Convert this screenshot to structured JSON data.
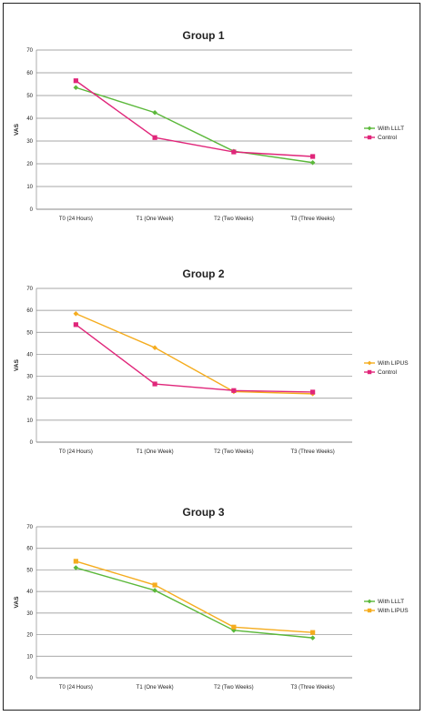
{
  "chart_data": [
    {
      "type": "line",
      "title": "Group 1",
      "ylabel": "VAS",
      "xlabel": "",
      "categories": [
        "T0 (24 Hours)",
        "T1 (One Week)",
        "T2 (Two Weeks)",
        "T3 (Three Weeks)"
      ],
      "ylim": [
        0,
        70
      ],
      "yticks": [
        0,
        10,
        20,
        30,
        40,
        50,
        60,
        70
      ],
      "grid": true,
      "legend": "right",
      "series": [
        {
          "name": "With LLLT",
          "values": [
            53.5,
            42.5,
            25.5,
            20.5
          ],
          "color": "#5bb83a",
          "marker": "diamond"
        },
        {
          "name": "Control",
          "values": [
            56.5,
            31.5,
            25.2,
            23.2
          ],
          "color": "#e0267a",
          "marker": "square"
        }
      ]
    },
    {
      "type": "line",
      "title": "Group 2",
      "ylabel": "VAS",
      "xlabel": "",
      "categories": [
        "T0 (24 Hours)",
        "T1 (One Week)",
        "T2 (Two Weeks)",
        "T3 (Three Weeks)"
      ],
      "ylim": [
        0,
        70
      ],
      "yticks": [
        0,
        10,
        20,
        30,
        40,
        50,
        60,
        70
      ],
      "grid": true,
      "legend": "right",
      "series": [
        {
          "name": "With LIPUS",
          "values": [
            58.5,
            43,
            23,
            22
          ],
          "color": "#f5ac1e",
          "marker": "diamond"
        },
        {
          "name": "Control",
          "values": [
            53.5,
            26.5,
            23.5,
            22.8
          ],
          "color": "#e0267a",
          "marker": "square"
        }
      ]
    },
    {
      "type": "line",
      "title": "Group 3",
      "ylabel": "VAS",
      "xlabel": "",
      "categories": [
        "T0 (24 Hours)",
        "T1 (One Week)",
        "T2 (Two Weeks)",
        "T3 (Three Weeks)"
      ],
      "ylim": [
        0,
        70
      ],
      "yticks": [
        0,
        10,
        20,
        30,
        40,
        50,
        60,
        70
      ],
      "grid": true,
      "legend": "right",
      "series": [
        {
          "name": "With LLLT",
          "values": [
            51,
            40.5,
            22,
            18.5
          ],
          "color": "#5bb83a",
          "marker": "diamond"
        },
        {
          "name": "With LIPUS",
          "values": [
            54,
            43,
            23.5,
            21
          ],
          "color": "#f5ac1e",
          "marker": "square"
        }
      ]
    }
  ]
}
